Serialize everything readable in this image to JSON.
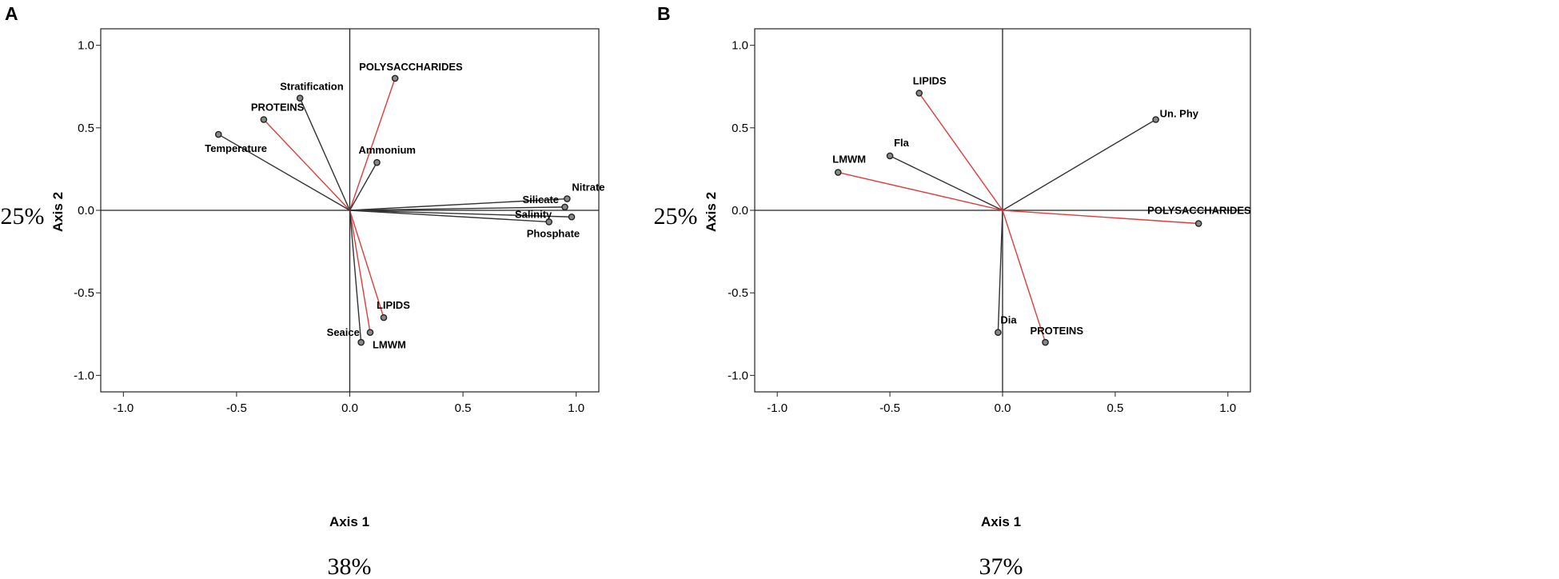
{
  "chart_data": [
    {
      "type": "scatter",
      "panel_label": "A",
      "xlabel": "Axis 1",
      "ylabel": "Axis 2",
      "x_variance": "38%",
      "y_variance": "25%",
      "xlim": [
        -1.1,
        1.1
      ],
      "ylim": [
        -1.1,
        1.1
      ],
      "x_ticks": [
        "-1.0",
        "-0.5",
        "0.0",
        "0.5",
        "1.0"
      ],
      "y_ticks": [
        "1.0",
        "0.5",
        "0.0",
        "-0.5",
        "-1.0"
      ],
      "grid": false,
      "reference_lines": "x=0 and y=0",
      "vectors": [
        {
          "label": "POLYSACCHARIDES",
          "x": 0.2,
          "y": 0.8,
          "color": "#e03c3c"
        },
        {
          "label": "Stratification",
          "x": -0.22,
          "y": 0.68,
          "color": "#333333"
        },
        {
          "label": "PROTEINS",
          "x": -0.38,
          "y": 0.55,
          "color": "#e03c3c"
        },
        {
          "label": "Temperature",
          "x": -0.58,
          "y": 0.46,
          "color": "#333333"
        },
        {
          "label": "Ammonium",
          "x": 0.12,
          "y": 0.29,
          "color": "#333333"
        },
        {
          "label": "Nitrate",
          "x": 0.96,
          "y": 0.07,
          "color": "#333333"
        },
        {
          "label": "Silicate",
          "x": 0.95,
          "y": 0.02,
          "color": "#333333"
        },
        {
          "label": "Salinity",
          "x": 0.98,
          "y": -0.04,
          "color": "#333333"
        },
        {
          "label": "Phosphate",
          "x": 0.88,
          "y": -0.07,
          "color": "#333333"
        },
        {
          "label": "LIPIDS",
          "x": 0.15,
          "y": -0.65,
          "color": "#e03c3c"
        },
        {
          "label": "LMWM",
          "x": 0.09,
          "y": -0.74,
          "color": "#e03c3c"
        },
        {
          "label": "Seaice",
          "x": 0.05,
          "y": -0.8,
          "color": "#333333"
        }
      ]
    },
    {
      "type": "scatter",
      "panel_label": "B",
      "xlabel": "Axis 1",
      "ylabel": "Axis 2",
      "x_variance": "37%",
      "y_variance": "25%",
      "xlim": [
        -1.1,
        1.1
      ],
      "ylim": [
        -1.1,
        1.1
      ],
      "x_ticks": [
        "-1.0",
        "-0.5",
        "0.0",
        "0.5",
        "1.0"
      ],
      "y_ticks": [
        "1.0",
        "0.5",
        "0.0",
        "-0.5",
        "-1.0"
      ],
      "grid": false,
      "reference_lines": "x=0 and y=0",
      "vectors": [
        {
          "label": "LIPIDS",
          "x": -0.37,
          "y": 0.71,
          "color": "#e03c3c"
        },
        {
          "label": "Un. Phy",
          "x": 0.68,
          "y": 0.55,
          "color": "#333333"
        },
        {
          "label": "Fla",
          "x": -0.5,
          "y": 0.33,
          "color": "#333333"
        },
        {
          "label": "LMWM",
          "x": -0.73,
          "y": 0.23,
          "color": "#e03c3c"
        },
        {
          "label": "POLYSACCHARIDES",
          "x": 0.87,
          "y": -0.08,
          "color": "#e03c3c"
        },
        {
          "label": "Dia",
          "x": -0.02,
          "y": -0.74,
          "color": "#333333"
        },
        {
          "label": "PROTEINS",
          "x": 0.19,
          "y": -0.8,
          "color": "#e03c3c"
        }
      ]
    }
  ]
}
